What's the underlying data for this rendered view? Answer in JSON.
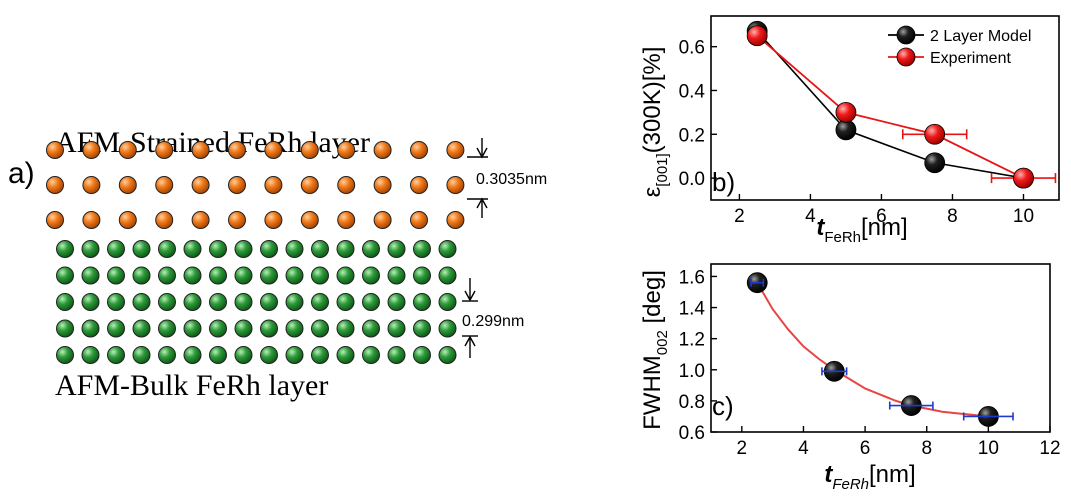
{
  "panel_a": {
    "panel_label": "a)",
    "strained_title": "AFM-Strained FeRh layer",
    "bulk_title": "AFM-Bulk FeRh layer",
    "strained_spacing_label": "0.3035nm",
    "bulk_spacing_label": "0.299nm",
    "strained_rows": 3,
    "strained_cols": 12,
    "bulk_rows": 5,
    "bulk_cols": 16,
    "colors": {
      "strained_atom": "#f07a1a",
      "bulk_atom": "#2e9a3a"
    }
  },
  "chart_data": [
    {
      "type": "line",
      "panel_label": "b)",
      "ylabel_main": "ε",
      "ylabel_sub": "[001]",
      "ylabel_rest": "(300K)[%]",
      "xlabel_main": "t",
      "xlabel_sub": "FeRh",
      "xlabel_rest": "[nm]",
      "xlim": [
        1.2,
        11
      ],
      "ylim": [
        -0.1,
        0.74
      ],
      "xticks": [
        2,
        4,
        6,
        8,
        10
      ],
      "yticks": [
        0.0,
        0.2,
        0.4,
        0.6
      ],
      "legend_position": "top-right",
      "series": [
        {
          "name": "2 Layer Model",
          "color": "#000000",
          "x": [
            2.5,
            5,
            7.5,
            10
          ],
          "y": [
            0.67,
            0.22,
            0.07,
            0.0
          ]
        },
        {
          "name": "Experiment",
          "color": "#e81414",
          "x": [
            2.5,
            5,
            7.5,
            10
          ],
          "y": [
            0.65,
            0.3,
            0.2,
            0.0
          ],
          "xerr": [
            0,
            0,
            0.9,
            0.9
          ]
        }
      ]
    },
    {
      "type": "scatter",
      "panel_label": "c)",
      "ylabel_main": "FWHM",
      "ylabel_sub": "002",
      "ylabel_rest": " [deg]",
      "xlabel_main": "t",
      "xlabel_sub": "FeRh",
      "xlabel_rest": "[nm]",
      "xlim": [
        1,
        12
      ],
      "ylim": [
        0.6,
        1.68
      ],
      "xticks": [
        2,
        4,
        6,
        8,
        10,
        12
      ],
      "yticks": [
        0.6,
        0.8,
        1.0,
        1.2,
        1.4,
        1.6
      ],
      "series": [
        {
          "color": "#000000",
          "x": [
            2.5,
            5,
            7.5,
            10
          ],
          "y": [
            1.56,
            0.99,
            0.77,
            0.7
          ],
          "xerr": [
            0.2,
            0.4,
            0.7,
            0.8
          ]
        }
      ],
      "fit": {
        "color": "#e84545",
        "x": [
          2.5,
          3,
          3.5,
          4,
          4.5,
          5,
          5.5,
          6,
          6.5,
          7,
          7.5,
          8,
          8.5,
          9,
          9.5,
          10
        ],
        "y": [
          1.56,
          1.39,
          1.26,
          1.15,
          1.07,
          1.0,
          0.94,
          0.88,
          0.84,
          0.8,
          0.77,
          0.75,
          0.73,
          0.72,
          0.71,
          0.7
        ]
      },
      "errorbar_color": "#1a3ad0"
    }
  ]
}
